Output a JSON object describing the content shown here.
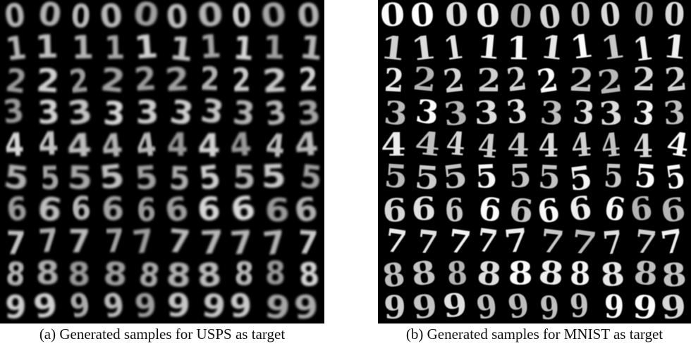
{
  "panels": [
    {
      "id": "usps",
      "caption": "(a)  Generated samples for USPS as target",
      "style": "blurry",
      "colors": {
        "background": "#000000",
        "stroke": "#d9d9d9"
      }
    },
    {
      "id": "mnist",
      "caption": "(b)  Generated samples for MNIST as target",
      "style": "sharp",
      "colors": {
        "background": "#000000",
        "stroke": "#ffffff"
      }
    }
  ],
  "grid": {
    "rows": [
      "0",
      "1",
      "2",
      "3",
      "4",
      "5",
      "6",
      "7",
      "8",
      "9"
    ],
    "samples_per_row": 10
  }
}
